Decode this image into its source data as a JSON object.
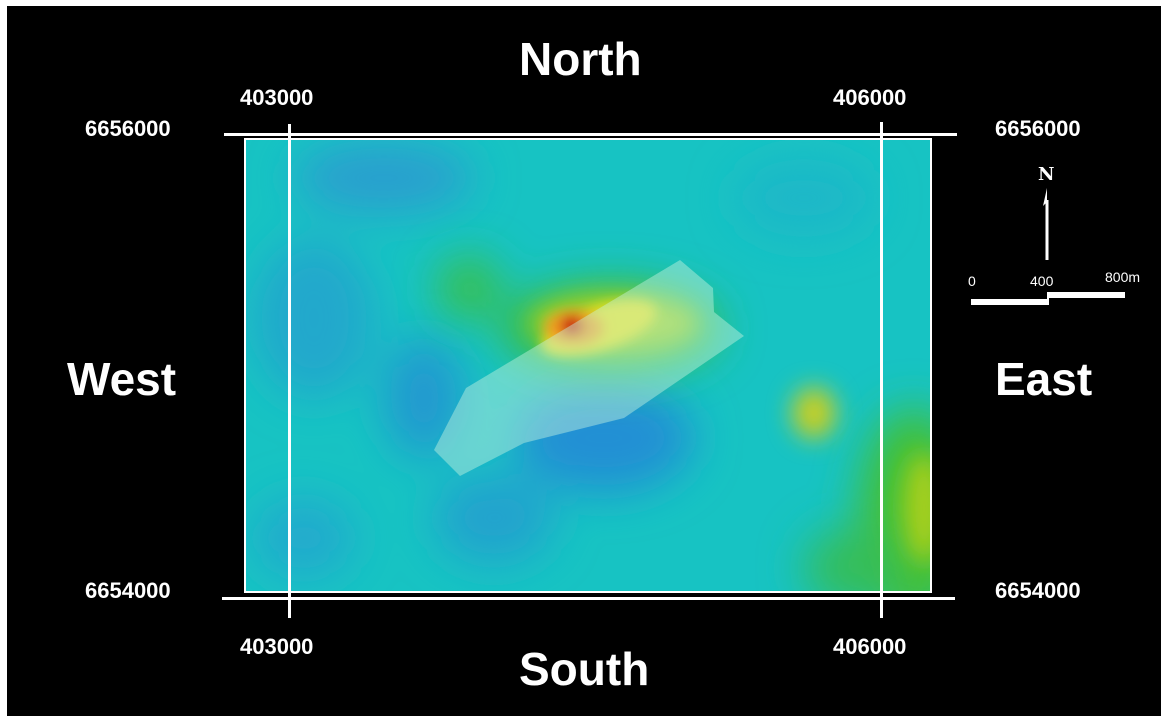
{
  "directions": {
    "north": "North",
    "south": "South",
    "west": "West",
    "east": "East"
  },
  "coordinates": {
    "easting_left_top": "403000",
    "easting_right_top": "406000",
    "easting_left_bottom": "403000",
    "easting_right_bottom": "406000",
    "northing_top_left": "6656000",
    "northing_top_right": "6656000",
    "northing_bottom_left": "6654000",
    "northing_bottom_right": "6654000"
  },
  "north_arrow": {
    "letter": "N"
  },
  "scale_bar": {
    "tick_0": "0",
    "tick_1": "400",
    "tick_2": "800m"
  },
  "colors": {
    "background": "#000000",
    "lines": "#ffffff",
    "map_low": "#1fa8c8",
    "map_mid": "#17c9c0",
    "map_high_green": "#3fbf3a",
    "map_high_yellow": "#e8e020",
    "map_peak_red": "#c81818",
    "overlay_polygon": "#bff5d8"
  }
}
